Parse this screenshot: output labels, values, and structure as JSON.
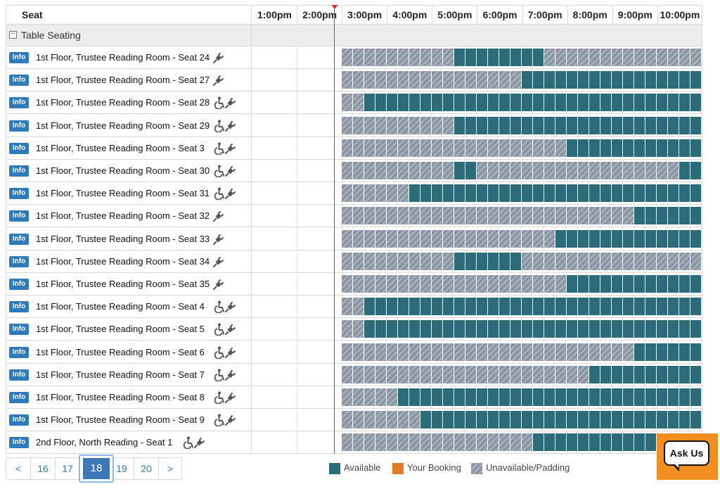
{
  "header": {
    "seat_label": "Seat",
    "hours": [
      "1:00pm",
      "2:00pm",
      "3:00pm",
      "4:00pm",
      "5:00pm",
      "6:00pm",
      "7:00pm",
      "8:00pm",
      "9:00pm",
      "10:00pm"
    ]
  },
  "group": {
    "toggle": "−",
    "label": "Table Seating"
  },
  "info_label": "Info",
  "rows": [
    {
      "name": "1st Floor, Trustee Reading Room - Seat 24",
      "accessible": false,
      "slots": "UUUUUUUUUUAAAAAAAAUUUUUUUUUUUUUU"
    },
    {
      "name": "1st Floor, Trustee Reading Room - Seat 27",
      "accessible": false,
      "slots": "UUUUUUUUUUUUUUUUAAAAAAAAAAAAAAAA"
    },
    {
      "name": "1st Floor, Trustee Reading Room - Seat 28",
      "accessible": true,
      "slots": "UUAAAAAAAAAAAAAAAAAAAAAAAAAAAAAA"
    },
    {
      "name": "1st Floor, Trustee Reading Room - Seat 29",
      "accessible": true,
      "slots": "UUUUUUUUUUAAAAAAAAAAAAAAAAAAAAAA"
    },
    {
      "name": "1st Floor, Trustee Reading Room - Seat 3",
      "accessible": true,
      "slots": "UUUUUUUUUUUUUUUUUUUUAAAAAAAAAAAA"
    },
    {
      "name": "1st Floor, Trustee Reading Room - Seat 30",
      "accessible": true,
      "slots": "UUUUUUUUUUAAUUUUUUUUUUUUUUUUUUAA"
    },
    {
      "name": "1st Floor, Trustee Reading Room - Seat 31",
      "accessible": true,
      "slots": "UUUUUUAAAAAAAAAAAAAAAAAAAAAAAAAA"
    },
    {
      "name": "1st Floor, Trustee Reading Room - Seat 32",
      "accessible": false,
      "slots": "UUUUUUUUUUUUUUUUUUUUUUUUUUAAAAAA"
    },
    {
      "name": "1st Floor, Trustee Reading Room - Seat 33",
      "accessible": false,
      "slots": "UUUUUUUUUUUUUUUUUUUAAAAAAAAAAAAA"
    },
    {
      "name": "1st Floor, Trustee Reading Room - Seat 34",
      "accessible": false,
      "slots": "UUUUUUUUUUAAAAAAUUUUUUUUUUUUUUUU"
    },
    {
      "name": "1st Floor, Trustee Reading Room - Seat 35",
      "accessible": false,
      "slots": "UUUUUUUUUUUUUUUUUUUUAAAAAAAAAAAA"
    },
    {
      "name": "1st Floor, Trustee Reading Room - Seat 4",
      "accessible": true,
      "slots": "UUAAAAAAAAAAAAAAAAAAAAAAAAAAAAAA"
    },
    {
      "name": "1st Floor, Trustee Reading Room - Seat 5",
      "accessible": true,
      "slots": "UUAAAAAAAAAAAAAAAAAAAAAAAAAAAAAA"
    },
    {
      "name": "1st Floor, Trustee Reading Room - Seat 6",
      "accessible": true,
      "slots": "UUUUUUUUUUUUUUUUUUUUUUUUUUAAAAAA"
    },
    {
      "name": "1st Floor, Trustee Reading Room - Seat 7",
      "accessible": true,
      "slots": "UUUUUUUUUUUUUUUUUUUUUUAAAAAAAAAA"
    },
    {
      "name": "1st Floor, Trustee Reading Room - Seat 8",
      "accessible": true,
      "slots": "UUUUUAAAAAAAAAAAAAAAAAAAAAAAAAAA"
    },
    {
      "name": "1st Floor, Trustee Reading Room - Seat 9",
      "accessible": true,
      "slots": "UUUUUUUAAAAAAAAAAAAAAAAAAAAAAAAA"
    },
    {
      "name": "2nd Floor, North Reading - Seat 1",
      "accessible": true,
      "slots": "UUUUUUUUUUUUUUUUUAAAAAAAAAAAAAAA"
    }
  ],
  "pager": {
    "prev": "<",
    "pages": [
      "16",
      "17",
      "18",
      "19",
      "20"
    ],
    "active": "18",
    "next": ">"
  },
  "legend": [
    {
      "label": "Available",
      "color": "#2b6c78",
      "kind": "av"
    },
    {
      "label": "Your Booking",
      "color": "#e07b2a",
      "kind": "bk"
    },
    {
      "label": "Unavailable/Padding",
      "color": "#8b96a3",
      "kind": "un"
    }
  ],
  "ask_us": "Ask Us",
  "colors": {
    "available": "#2b6c78",
    "unavailable": "#8b96a3",
    "booking": "#e07b2a",
    "now_line": "#e3352f",
    "info": "#2f7ab9"
  },
  "icons": [
    "wheelchair-icon",
    "power-outlet-icon"
  ]
}
